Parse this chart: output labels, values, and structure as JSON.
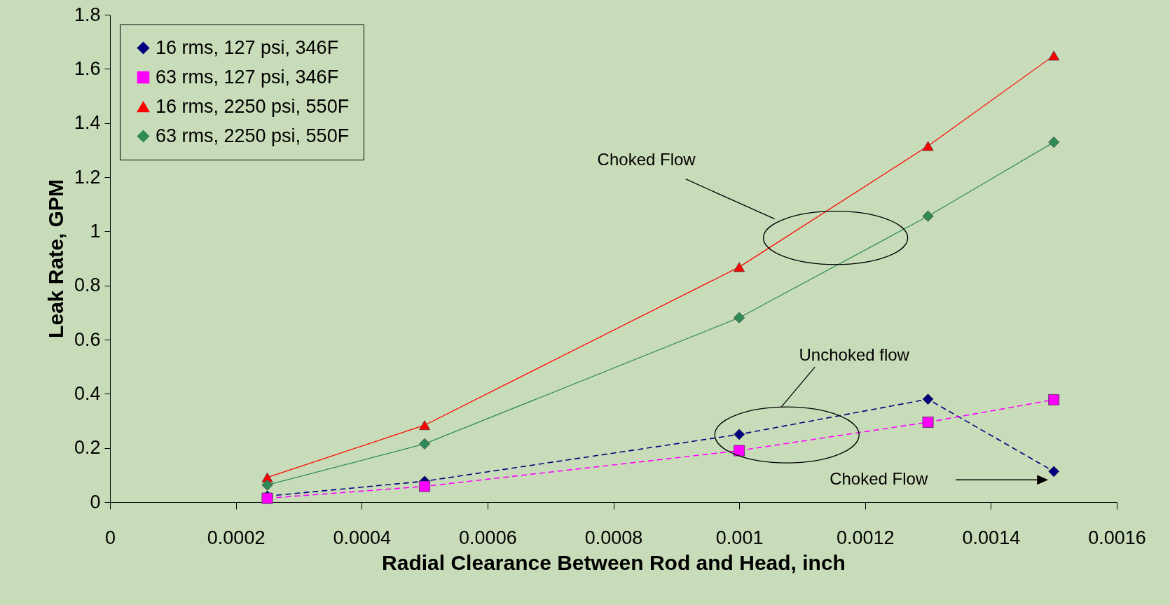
{
  "chart_data": {
    "type": "line",
    "xlabel": "Radial Clearance Between Rod and Head, inch",
    "ylabel": "Leak Rate, GPM",
    "x": [
      0.00025,
      0.0005,
      0.001,
      0.0013,
      0.0015
    ],
    "series": [
      {
        "name": "16 rms, 127 psi, 346F",
        "color": "#000080",
        "marker": "diamond",
        "line_style": "dashed",
        "values": [
          0.022,
          0.077,
          0.25,
          0.38,
          0.113
        ]
      },
      {
        "name": "63 rms, 127 psi, 346F",
        "color": "#ff00ff",
        "marker": "square",
        "line_style": "dashed",
        "values": [
          0.014,
          0.058,
          0.19,
          0.295,
          0.378
        ]
      },
      {
        "name": "16 rms, 2250 psi, 550F",
        "color": "#ff0000",
        "marker": "triangle",
        "line_style": "solid",
        "values": [
          0.091,
          0.284,
          0.868,
          1.315,
          1.649
        ]
      },
      {
        "name": "63 rms, 2250 psi, 550F",
        "color": "#2e8b57",
        "marker": "diamond",
        "line_style": "solid",
        "values": [
          0.063,
          0.215,
          0.681,
          1.056,
          1.329
        ]
      }
    ],
    "xlim": [
      0,
      0.0016
    ],
    "xticks": [
      0,
      0.0002,
      0.0004,
      0.0006,
      0.0008,
      0.001,
      0.0012,
      0.0014,
      0.0016
    ],
    "ylim": [
      0,
      1.8
    ],
    "yticks": [
      0,
      0.2,
      0.4,
      0.6,
      0.8,
      1,
      1.2,
      1.4,
      1.6,
      1.8
    ],
    "grid": false,
    "legend": "top left",
    "annotations": [
      "Choked Flow",
      "Unchoked flow",
      "Choked Flow"
    ]
  }
}
